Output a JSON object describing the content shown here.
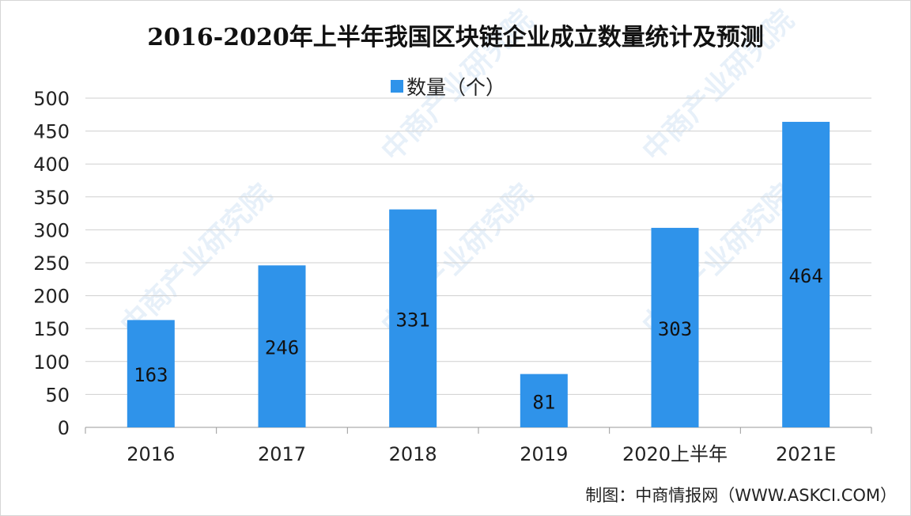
{
  "chart_data": {
    "type": "bar",
    "title": "2016-2020年上半年我国区块链企业成立数量统计及预测",
    "categories": [
      "2016",
      "2017",
      "2018",
      "2019",
      "2020上半年",
      "2021E"
    ],
    "series": [
      {
        "name": "数量（个）",
        "values": [
          163,
          246,
          331,
          81,
          303,
          464
        ]
      }
    ],
    "data_labels": [
      "163",
      "246",
      "331",
      "81",
      "303",
      "464"
    ],
    "ylim": [
      0,
      500
    ],
    "yticks": [
      0,
      50,
      100,
      150,
      200,
      250,
      300,
      350,
      400,
      450,
      500
    ],
    "grid": true,
    "legend_position": "top-center",
    "bar_color": "#2f93ea"
  },
  "source_note": "制图：中商情报网（WWW.ASKCI.COM）",
  "watermark_text": "中商产业研究院"
}
